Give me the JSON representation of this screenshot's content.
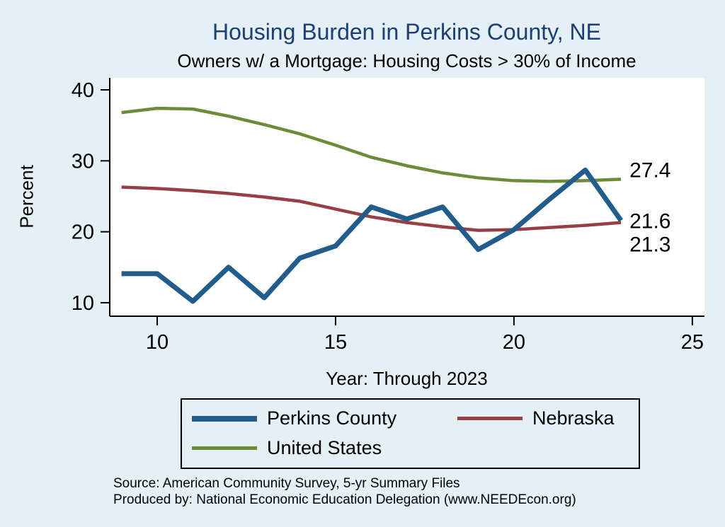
{
  "title": "Housing Burden in Perkins County, NE",
  "subtitle": "Owners w/ a Mortgage: Housing Costs > 30% of Income",
  "source": {
    "line1": "Source: American Community Survey, 5-yr Summary Files",
    "line2": "Produced by: National Economic Education Delegation (www.NEEDEcon.org)"
  },
  "colors": {
    "background": "#e4f0f6",
    "plot_background": "#ffffff",
    "title": "#1c3e74",
    "axis": "#000000",
    "perkins_county": "#205d8d",
    "nebraska": "#963f44",
    "united_states": "#6d8c3a"
  },
  "chart_data": {
    "type": "line",
    "title": "Housing Burden in Perkins County, NE",
    "subtitle": "Owners w/ a Mortgage: Housing Costs > 30% of Income",
    "xlabel": "Year: Through 2023",
    "ylabel": "Percent",
    "x": [
      9,
      10,
      11,
      12,
      13,
      14,
      15,
      16,
      17,
      18,
      19,
      20,
      21,
      22,
      23
    ],
    "series": [
      {
        "name": "Perkins County",
        "color": "#205d8d",
        "width": 7,
        "values": [
          14.1,
          14.1,
          10.2,
          15.0,
          10.7,
          16.3,
          18.0,
          23.5,
          21.8,
          23.5,
          17.5,
          20.3,
          24.6,
          28.7,
          21.6
        ],
        "end_label": "21.6",
        "end_label_dy": 0
      },
      {
        "name": "Nebraska",
        "color": "#963f44",
        "width": 4.5,
        "values": [
          26.3,
          26.1,
          25.8,
          25.4,
          24.9,
          24.3,
          23.2,
          22.1,
          21.3,
          20.7,
          20.2,
          20.3,
          20.6,
          20.9,
          21.3
        ],
        "end_label": "21.3",
        "end_label_dy": 30
      },
      {
        "name": "United States",
        "color": "#6d8c3a",
        "width": 4.5,
        "values": [
          36.8,
          37.4,
          37.3,
          36.3,
          35.1,
          33.8,
          32.2,
          30.5,
          29.3,
          28.3,
          27.6,
          27.2,
          27.1,
          27.2,
          27.4
        ],
        "end_label": "27.4",
        "end_label_dy": -14
      }
    ],
    "xticks": [
      10,
      15,
      20,
      25
    ],
    "yticks": [
      10,
      20,
      30,
      40
    ],
    "xlim": [
      8.67,
      25.34
    ],
    "ylim": [
      8.1,
      41.7
    ],
    "grid": false,
    "legend_position": "bottom"
  }
}
